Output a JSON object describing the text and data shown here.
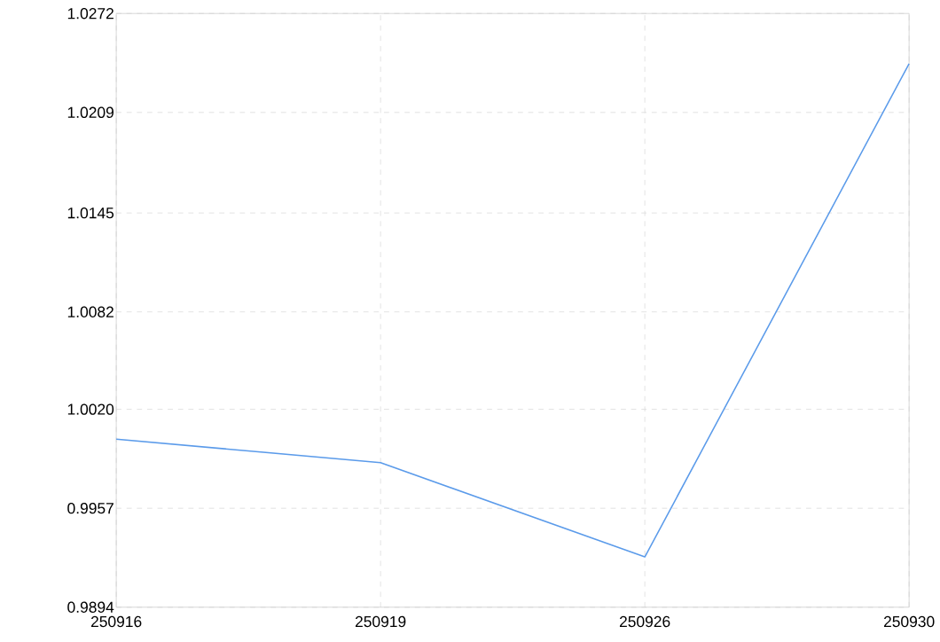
{
  "chart_data": {
    "type": "line",
    "categories": [
      "250916",
      "250919",
      "250926",
      "250930"
    ],
    "series": [
      {
        "color": "#5b9bea",
        "values": [
          1.0001,
          0.9986,
          0.9926,
          1.024
        ]
      }
    ],
    "ylim": [
      0.9894,
      1.0272
    ],
    "yticks": [
      {
        "value": 0.9894,
        "label": "0.9894"
      },
      {
        "value": 0.9957,
        "label": "0.9957"
      },
      {
        "value": 1.002,
        "label": "1.0020"
      },
      {
        "value": 1.0082,
        "label": "1.0082"
      },
      {
        "value": 1.0145,
        "label": "1.0145"
      },
      {
        "value": 1.0209,
        "label": "1.0209"
      },
      {
        "value": 1.0272,
        "label": "1.0272"
      }
    ],
    "grid": true,
    "marker": "none",
    "line_style": "solid"
  }
}
